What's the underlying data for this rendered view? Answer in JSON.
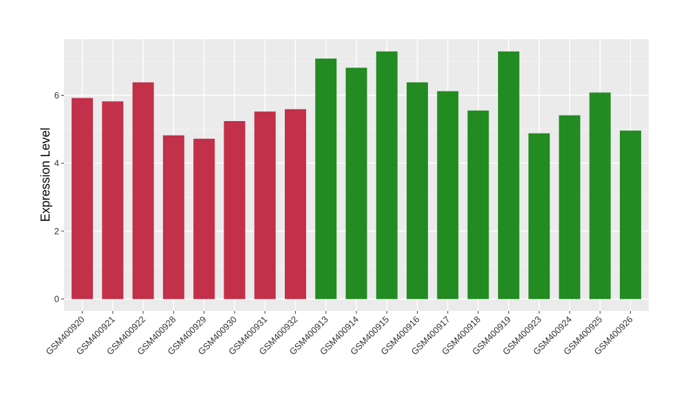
{
  "chart_data": {
    "type": "bar",
    "title": "",
    "xlabel": "",
    "ylabel": "Expression Level",
    "ylim": [
      -0.35,
      7.65
    ],
    "yticks": [
      0,
      2,
      4,
      6
    ],
    "grid": true,
    "legend": "none",
    "categories": [
      "GSM400920",
      "GSM400921",
      "GSM400922",
      "GSM400928",
      "GSM400929",
      "GSM400930",
      "GSM400931",
      "GSM400932",
      "GSM400913",
      "GSM400914",
      "GSM400915",
      "GSM400916",
      "GSM400917",
      "GSM400918",
      "GSM400919",
      "GSM400923",
      "GSM400924",
      "GSM400925",
      "GSM400926"
    ],
    "values": [
      5.92,
      5.82,
      6.38,
      4.82,
      4.72,
      5.24,
      5.52,
      5.59,
      7.08,
      6.81,
      7.29,
      6.38,
      6.12,
      5.55,
      7.29,
      4.88,
      5.41,
      6.08,
      4.96
    ],
    "groups": [
      "red",
      "red",
      "red",
      "red",
      "red",
      "red",
      "red",
      "red",
      "green",
      "green",
      "green",
      "green",
      "green",
      "green",
      "green",
      "green",
      "green",
      "green",
      "green"
    ],
    "colors": {
      "red": "#C2304A",
      "green": "#228B22",
      "panel": "#EBEBEB",
      "grid_major": "#FFFFFF",
      "grid_minor": "#F5F5F5"
    }
  }
}
